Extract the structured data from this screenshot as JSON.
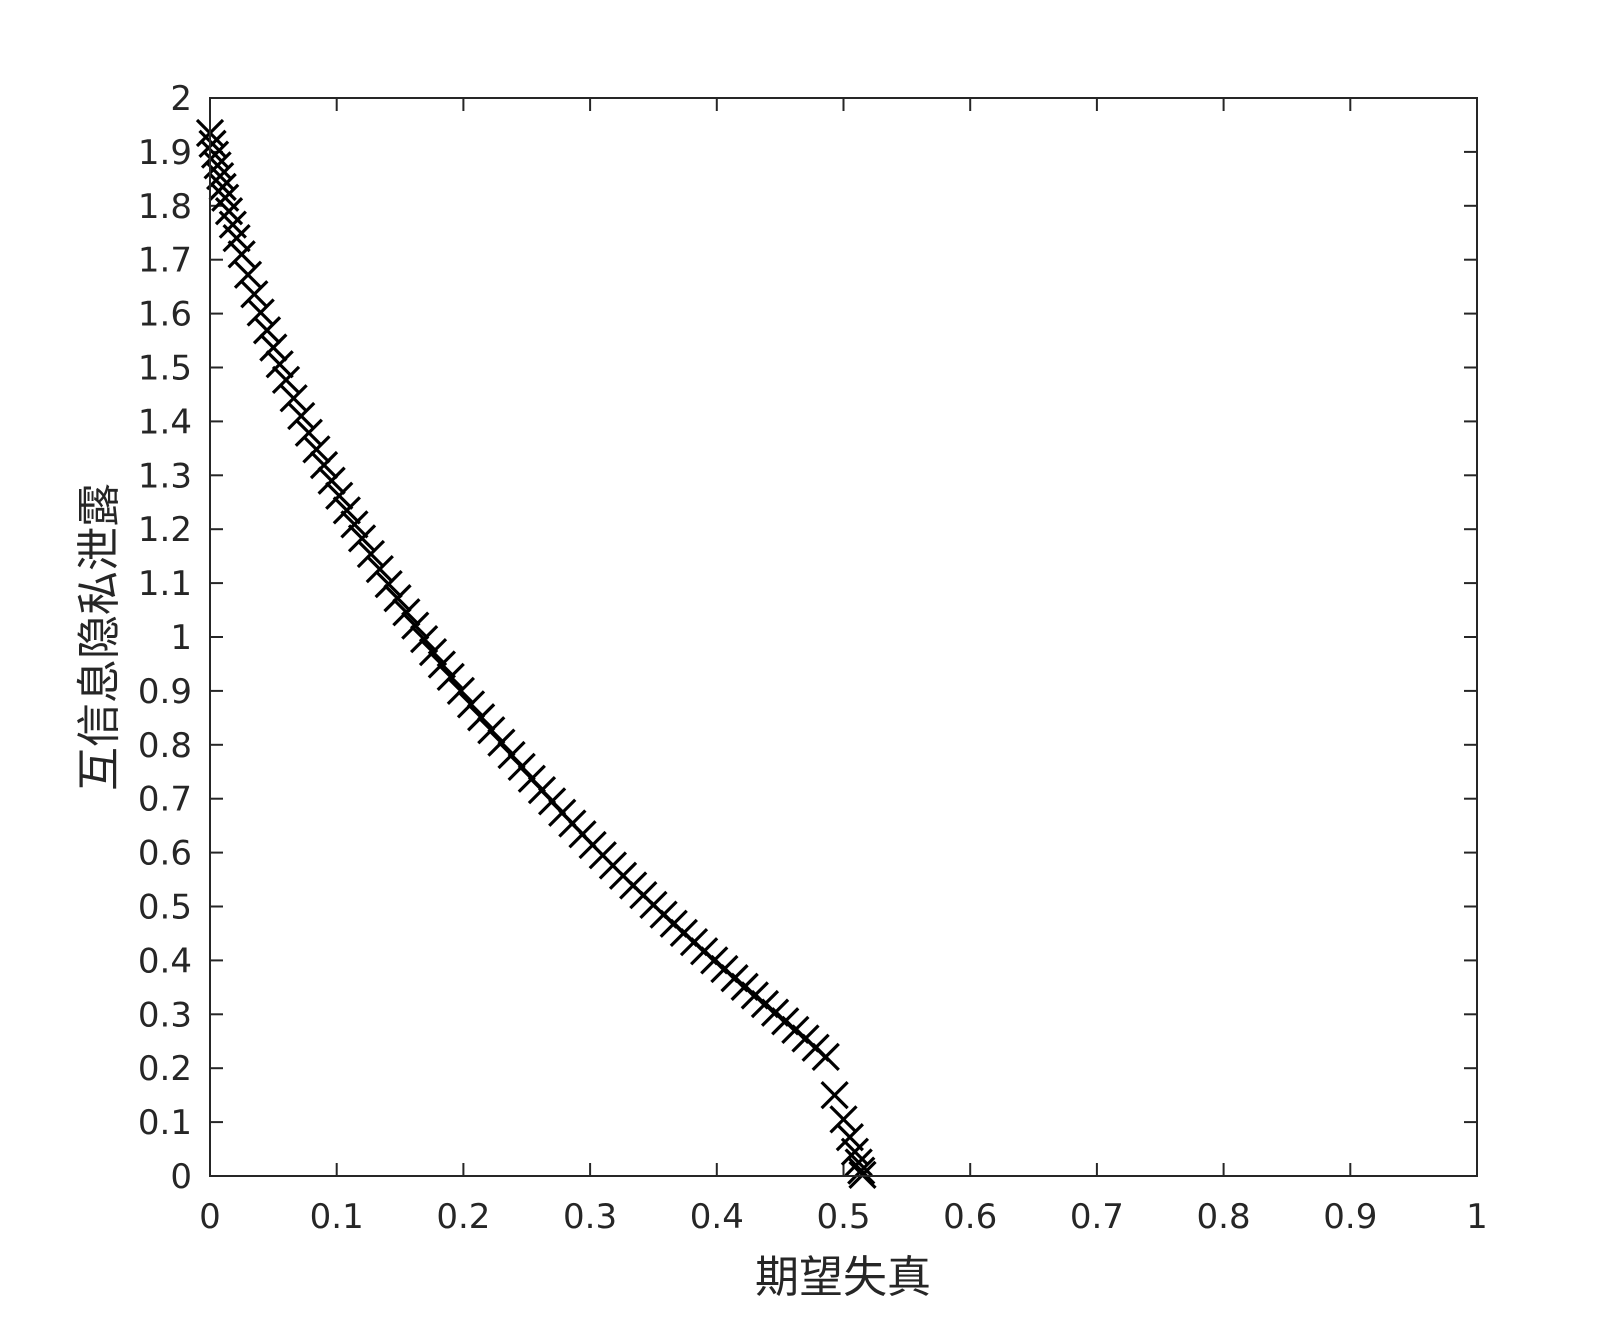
{
  "chart_data": {
    "type": "scatter",
    "title": "",
    "xlabel": "期望失真",
    "ylabel": "互信息隐私泄露",
    "xlim": [
      0,
      1
    ],
    "ylim": [
      0,
      2
    ],
    "xticks": [
      "0",
      "0.1",
      "0.2",
      "0.3",
      "0.4",
      "0.5",
      "0.6",
      "0.7",
      "0.8",
      "0.9",
      "1"
    ],
    "yticks": [
      "0",
      "0.1",
      "0.2",
      "0.3",
      "0.4",
      "0.5",
      "0.6",
      "0.7",
      "0.8",
      "0.9",
      "1",
      "1.1",
      "1.2",
      "1.3",
      "1.4",
      "1.5",
      "1.6",
      "1.7",
      "1.8",
      "1.9",
      "2"
    ],
    "grid": false,
    "box": true,
    "marker": "x",
    "marker_color": "#000000",
    "series": [
      {
        "x": [
          0.0,
          0.002,
          0.004,
          0.006,
          0.008,
          0.01,
          0.012,
          0.015,
          0.018,
          0.021,
          0.025,
          0.03,
          0.035,
          0.04,
          0.045,
          0.05,
          0.055,
          0.06,
          0.066,
          0.072,
          0.078,
          0.084,
          0.09,
          0.096,
          0.102,
          0.108,
          0.114,
          0.12,
          0.127,
          0.134,
          0.141,
          0.148,
          0.155,
          0.162,
          0.169,
          0.176,
          0.183,
          0.19,
          0.198,
          0.206,
          0.214,
          0.222,
          0.23,
          0.238,
          0.246,
          0.254,
          0.262,
          0.27,
          0.278,
          0.286,
          0.294,
          0.302,
          0.31,
          0.318,
          0.326,
          0.334,
          0.342,
          0.35,
          0.358,
          0.366,
          0.374,
          0.382,
          0.39,
          0.398,
          0.406,
          0.414,
          0.422,
          0.43,
          0.438,
          0.446,
          0.454,
          0.462,
          0.47,
          0.478,
          0.486,
          0.493,
          0.5,
          0.505,
          0.509,
          0.512,
          0.514,
          0.515
        ],
        "y": [
          1.935,
          1.915,
          1.895,
          1.875,
          1.855,
          1.835,
          1.815,
          1.79,
          1.765,
          1.74,
          1.71,
          1.672,
          1.636,
          1.602,
          1.569,
          1.537,
          1.506,
          1.477,
          1.443,
          1.41,
          1.379,
          1.348,
          1.319,
          1.29,
          1.262,
          1.235,
          1.209,
          1.183,
          1.154,
          1.126,
          1.098,
          1.072,
          1.046,
          1.021,
          0.996,
          0.972,
          0.949,
          0.926,
          0.9,
          0.875,
          0.851,
          0.827,
          0.804,
          0.781,
          0.759,
          0.737,
          0.716,
          0.695,
          0.674,
          0.654,
          0.634,
          0.614,
          0.595,
          0.576,
          0.557,
          0.539,
          0.521,
          0.503,
          0.485,
          0.468,
          0.451,
          0.434,
          0.417,
          0.4,
          0.384,
          0.367,
          0.351,
          0.335,
          0.319,
          0.303,
          0.287,
          0.271,
          0.255,
          0.238,
          0.221,
          0.15,
          0.105,
          0.072,
          0.045,
          0.025,
          0.01,
          0.002
        ]
      }
    ]
  }
}
